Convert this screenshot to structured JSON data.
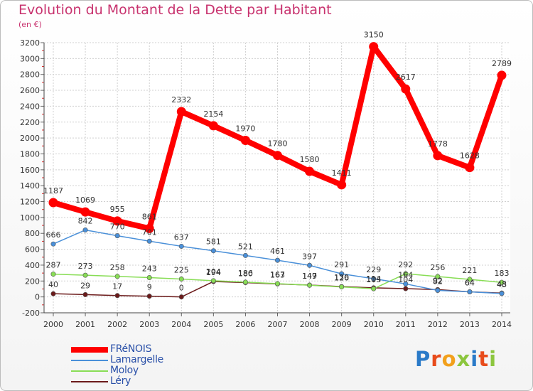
{
  "title": "Evolution du Montant de la Dette par Habitant",
  "subtitle": "(en €)",
  "logo": {
    "text": "Proxiti",
    "colors": [
      "#2a7ac8",
      "#e84c1c",
      "#f2a01c",
      "#8cc63e",
      "#2a7ac8",
      "#e84c1c",
      "#8cc63e"
    ]
  },
  "chart_data": {
    "type": "line",
    "x": [
      "2000",
      "2001",
      "2002",
      "2003",
      "2004",
      "2005",
      "2006",
      "2007",
      "2008",
      "2009",
      "2010",
      "2011",
      "2012",
      "2013",
      "2014"
    ],
    "ylim": [
      -200,
      3200
    ],
    "yticks": [
      "-200",
      "0",
      "200",
      "400",
      "600",
      "800",
      "1000",
      "1200",
      "1400",
      "1600",
      "1800",
      "2000",
      "2200",
      "2400",
      "2600",
      "2800",
      "3000",
      "3200"
    ],
    "grid": true,
    "legend_position": "bottom-left",
    "series": [
      {
        "name": "FRéNOIS",
        "color": "#ff0000",
        "values": [
          1187,
          1069,
          955,
          861,
          2332,
          2154,
          1970,
          1780,
          1580,
          1411,
          3150,
          2617,
          1778,
          1628,
          2789
        ],
        "labels": [
          "1187",
          "1069",
          "955",
          "861",
          "2332",
          "2154",
          "1970",
          "1780",
          "1580",
          "1411",
          "3150",
          "2617",
          "1778",
          "1628",
          "2789"
        ]
      },
      {
        "name": "Lamargelle",
        "color": "#4a90d9",
        "values": [
          666,
          842,
          770,
          701,
          637,
          581,
          521,
          461,
          397,
          291,
          229,
          164,
          82,
          64,
          43
        ],
        "labels": [
          "666",
          "842",
          "770",
          "701",
          "637",
          "581",
          "521",
          "461",
          "397",
          "291",
          "229",
          "164",
          "82",
          "64",
          "43"
        ]
      },
      {
        "name": "Moloy",
        "color": "#88dd55",
        "values": [
          287,
          273,
          258,
          243,
          225,
          204,
          186,
          167,
          147,
          126,
          103,
          292,
          256,
          221,
          183
        ],
        "labels": [
          "287",
          "273",
          "258",
          "243",
          "225",
          "204",
          "186",
          "167",
          "147",
          "126",
          "103",
          "292",
          "256",
          "221",
          "183"
        ]
      },
      {
        "name": "Léry",
        "color": "#6b1a1a",
        "values": [
          40,
          29,
          17,
          9,
          0,
          194,
          180,
          163,
          149,
          130,
          114,
          104,
          92,
          64,
          48
        ],
        "labels": [
          "40",
          "29",
          "17",
          "9",
          "0",
          "194",
          "180",
          "163",
          "149",
          "130",
          "114",
          "104",
          "92",
          "64",
          "48"
        ]
      }
    ]
  }
}
